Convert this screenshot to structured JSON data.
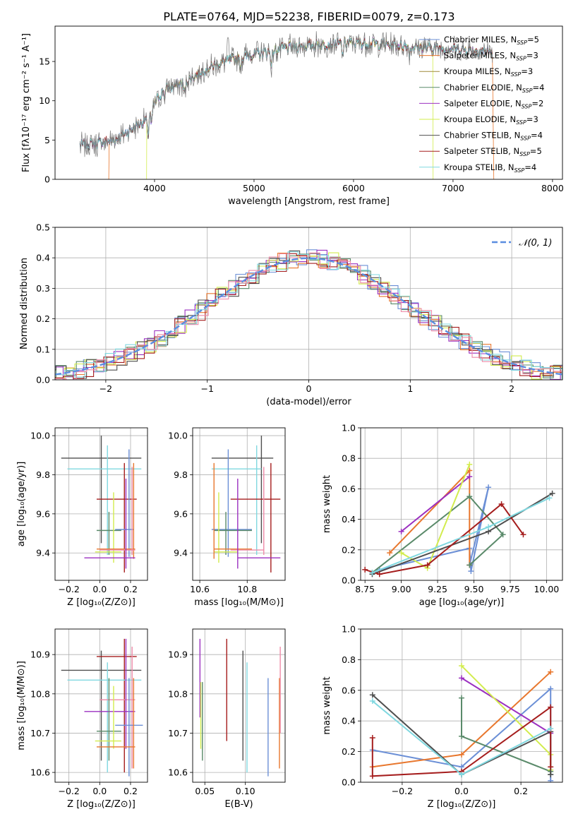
{
  "figure_title": "PLATE=0764, MJD=52238, FIBERID=0079, z=0.173",
  "colors": {
    "Chabrier MILES": "#6b8fd6",
    "Salpeter MILES": "#e8772e",
    "Kroupa MILES": "#a08a3a",
    "Chabrier ELODIE": "#5a8a6a",
    "Salpeter ELODIE": "#9b30c0",
    "Kroupa ELODIE": "#d2ec4e",
    "Chabrier STELIB": "#4f4f4f",
    "Salpeter STELIB": "#a51d1d",
    "Kroupa STELIB": "#80d8e0",
    "extra_pink": "#ee8aa8"
  },
  "chart_data": [
    {
      "id": "spectrum",
      "type": "line",
      "xlabel": "wavelength [Angstrom, rest frame]",
      "ylabel": "Flux [fλ10⁻¹⁷ erg cm⁻² s⁻¹ A⁻¹]",
      "xlim": [
        3000,
        8100
      ],
      "ylim": [
        0,
        19.5
      ],
      "xticks": [
        4000,
        5000,
        6000,
        7000,
        8000
      ],
      "yticks": [
        0,
        5,
        10,
        15
      ],
      "grid": false,
      "legend_position": "top-right",
      "legend": [
        {
          "name": "Chabrier MILES",
          "nssp": "5"
        },
        {
          "name": "Salpeter MILES",
          "nssp": "3"
        },
        {
          "name": "Kroupa MILES",
          "nssp": "3"
        },
        {
          "name": "Chabrier ELODIE",
          "nssp": "4"
        },
        {
          "name": "Salpeter ELODIE",
          "nssp": "2"
        },
        {
          "name": "Kroupa ELODIE",
          "nssp": "3"
        },
        {
          "name": "Chabrier STELIB",
          "nssp": "4"
        },
        {
          "name": "Salpeter STELIB",
          "nssp": "5"
        },
        {
          "name": "Kroupa STELIB",
          "nssp": "4"
        }
      ],
      "continuum": {
        "x": [
          3250,
          3600,
          3900,
          3990,
          4100,
          4300,
          4500,
          4700,
          5000,
          5300,
          5600,
          6000,
          6500,
          7000,
          7400
        ],
        "y": [
          4.3,
          5.0,
          7.5,
          9.5,
          11.5,
          12.3,
          14.0,
          15.0,
          15.9,
          16.7,
          17.1,
          17.4,
          17.0,
          16.6,
          16.2
        ]
      },
      "model_coverage": [
        {
          "model": "Salpeter MILES",
          "xmin": 3540,
          "xmax": 7410
        },
        {
          "model": "Kroupa ELODIE",
          "xmin": 3920,
          "xmax": 6800
        }
      ]
    },
    {
      "id": "residuals",
      "type": "histogram",
      "xlabel": "(data-model)/error",
      "ylabel": "Normed distribution",
      "xlim": [
        -2.5,
        2.5
      ],
      "ylim": [
        0,
        0.5
      ],
      "xticks": [
        -2,
        -1,
        0,
        1,
        2
      ],
      "yticks": [
        0.0,
        0.1,
        0.2,
        0.3,
        0.4,
        0.5
      ],
      "grid": true,
      "legend_position": "top-right",
      "reference_curve": {
        "label": "𝒩(0, 1)",
        "mean": 0,
        "std": 1,
        "style": "dashed"
      },
      "bin_width": 0.1
    },
    {
      "id": "age-vs-Z",
      "type": "errorbar",
      "xlabel": "Z [log₁₀(Z/Z⊙)]",
      "ylabel": "age  [log₁₀(age/yr)]",
      "xlim": [
        -0.29,
        0.31
      ],
      "ylim": [
        9.26,
        10.04
      ],
      "xticks": [
        -0.2,
        0.0,
        0.2
      ],
      "yticks": [
        9.4,
        9.6,
        9.8,
        10.0
      ],
      "grid": true,
      "points": [
        {
          "model": "Chabrier STELIB",
          "x": 0.01,
          "xlo": -0.25,
          "xhi": 0.27,
          "y": 9.885,
          "ylo": 9.45,
          "yhi": 10.0
        },
        {
          "model": "Kroupa STELIB",
          "x": 0.05,
          "xlo": -0.21,
          "xhi": 0.27,
          "y": 9.83,
          "ylo": 9.39,
          "yhi": 9.95
        },
        {
          "model": "Salpeter STELIB",
          "x": 0.16,
          "xlo": -0.02,
          "xhi": 0.24,
          "y": 9.675,
          "ylo": 9.3,
          "yhi": 9.86
        },
        {
          "model": "Chabrier MILES",
          "x": 0.19,
          "xlo": 0.1,
          "xhi": 0.22,
          "y": 9.52,
          "ylo": 9.38,
          "yhi": 9.93
        },
        {
          "model": "Chabrier ELODIE",
          "x": 0.06,
          "xlo": -0.02,
          "xhi": 0.14,
          "y": 9.515,
          "ylo": 9.39,
          "yhi": 9.61
        },
        {
          "model": "Kroupa ELODIE",
          "x": 0.09,
          "xlo": -0.03,
          "xhi": 0.14,
          "y": 9.405,
          "ylo": 9.35,
          "yhi": 9.71
        },
        {
          "model": "Salpeter MILES",
          "x": 0.22,
          "xlo": -0.02,
          "xhi": 0.23,
          "y": 9.42,
          "ylo": 9.37,
          "yhi": 9.86
        },
        {
          "model": "extra_pink",
          "x": 0.21,
          "xlo": 0.0,
          "xhi": 0.23,
          "y": 9.415,
          "ylo": 9.39,
          "yhi": 9.84
        },
        {
          "model": "Salpeter ELODIE",
          "x": 0.17,
          "xlo": -0.1,
          "xhi": 0.23,
          "y": 9.375,
          "ylo": 9.32,
          "yhi": 9.78
        }
      ]
    },
    {
      "id": "age-vs-mass",
      "type": "errorbar",
      "xlabel": "mass [log₁₀(M/M⊙)]",
      "ylabel": "",
      "xlim": [
        10.57,
        10.96
      ],
      "ylim": [
        9.26,
        10.04
      ],
      "xticks": [
        10.6,
        10.8
      ],
      "yticks": [
        9.4,
        9.6,
        9.8,
        10.0
      ],
      "grid": true,
      "points": [
        {
          "model": "Chabrier STELIB",
          "x": 10.86,
          "xlo": 10.65,
          "xhi": 10.91,
          "y": 9.885,
          "ylo": 9.45,
          "yhi": 10.0
        },
        {
          "model": "Kroupa STELIB",
          "x": 10.84,
          "xlo": 10.65,
          "xhi": 10.86,
          "y": 9.83,
          "ylo": 9.39,
          "yhi": 9.95
        },
        {
          "model": "Salpeter STELIB",
          "x": 10.9,
          "xlo": 10.73,
          "xhi": 10.94,
          "y": 9.675,
          "ylo": 9.3,
          "yhi": 9.86
        },
        {
          "model": "Chabrier MILES",
          "x": 10.72,
          "xlo": 10.65,
          "xhi": 10.82,
          "y": 9.52,
          "ylo": 9.38,
          "yhi": 9.93
        },
        {
          "model": "Chabrier ELODIE",
          "x": 10.71,
          "xlo": 10.66,
          "xhi": 10.82,
          "y": 9.515,
          "ylo": 9.39,
          "yhi": 9.61
        },
        {
          "model": "Kroupa ELODIE",
          "x": 10.68,
          "xlo": 10.66,
          "xhi": 10.76,
          "y": 9.405,
          "ylo": 9.35,
          "yhi": 9.71
        },
        {
          "model": "Salpeter MILES",
          "x": 10.66,
          "xlo": 10.66,
          "xhi": 10.82,
          "y": 9.42,
          "ylo": 9.37,
          "yhi": 9.86
        },
        {
          "model": "extra_pink",
          "x": 10.87,
          "xlo": 10.73,
          "xhi": 10.87,
          "y": 9.415,
          "ylo": 9.39,
          "yhi": 9.84
        },
        {
          "model": "Salpeter ELODIE",
          "x": 10.76,
          "xlo": 10.76,
          "xhi": 10.94,
          "y": 9.375,
          "ylo": 9.32,
          "yhi": 9.78
        }
      ]
    },
    {
      "id": "weight-vs-age",
      "type": "line",
      "xlabel": "age  [log₁₀(age/yr)]",
      "ylabel": "mass weight",
      "xlim": [
        8.72,
        10.11
      ],
      "ylim": [
        0,
        1.0
      ],
      "xticks": [
        8.75,
        9.0,
        9.25,
        9.5,
        9.75,
        10.0
      ],
      "yticks": [
        0.0,
        0.2,
        0.4,
        0.6,
        0.8,
        1.0
      ],
      "grid": true,
      "series": [
        {
          "model": "Chabrier MILES",
          "x": [
            8.8,
            8.85,
            9.47,
            9.48,
            9.6,
            9.47
          ],
          "y": [
            0.05,
            0.07,
            0.21,
            0.06,
            0.61,
            0.1
          ]
        },
        {
          "model": "Salpeter MILES",
          "x": [
            8.92,
            9.47,
            9.47
          ],
          "y": [
            0.18,
            0.72,
            0.1
          ]
        },
        {
          "model": "Chabrier ELODIE",
          "x": [
            8.8,
            9.47,
            9.7,
            9.47
          ],
          "y": [
            0.05,
            0.55,
            0.3,
            0.1
          ]
        },
        {
          "model": "Salpeter ELODIE",
          "x": [
            9.0,
            9.47
          ],
          "y": [
            0.32,
            0.68
          ]
        },
        {
          "model": "Kroupa ELODIE",
          "x": [
            9.0,
            9.18,
            9.47
          ],
          "y": [
            0.18,
            0.08,
            0.76
          ]
        },
        {
          "model": "Chabrier STELIB",
          "x": [
            8.8,
            9.6,
            10.04
          ],
          "y": [
            0.04,
            0.32,
            0.57
          ]
        },
        {
          "model": "Salpeter STELIB",
          "x": [
            8.75,
            8.85,
            9.18,
            9.69,
            9.84
          ],
          "y": [
            0.07,
            0.04,
            0.1,
            0.5,
            0.3
          ]
        },
        {
          "model": "Kroupa STELIB",
          "x": [
            8.8,
            9.6,
            10.02
          ],
          "y": [
            0.05,
            0.35,
            0.54
          ]
        }
      ]
    },
    {
      "id": "mass-vs-Z",
      "type": "errorbar",
      "xlabel": "Z [log₁₀(Z/Z⊙)]",
      "ylabel": "mass [log₁₀(M/M⊙)]",
      "xlim": [
        -0.29,
        0.31
      ],
      "ylim": [
        10.575,
        10.965
      ],
      "xticks": [
        -0.2,
        0.0,
        0.2
      ],
      "yticks": [
        10.6,
        10.7,
        10.8,
        10.9
      ],
      "grid": true,
      "points": [
        {
          "model": "Chabrier STELIB",
          "x": 0.01,
          "xlo": -0.25,
          "xhi": 0.27,
          "y": 10.86,
          "ylo": 10.63,
          "yhi": 10.91
        },
        {
          "model": "Salpeter STELIB",
          "x": 0.16,
          "xlo": -0.02,
          "xhi": 0.24,
          "y": 10.895,
          "ylo": 10.6,
          "yhi": 10.94
        },
        {
          "model": "Kroupa STELIB",
          "x": 0.05,
          "xlo": -0.21,
          "xhi": 0.27,
          "y": 10.835,
          "ylo": 10.6,
          "yhi": 10.88
        },
        {
          "model": "extra_pink",
          "x": 0.21,
          "xlo": 0.0,
          "xhi": 0.23,
          "y": 10.785,
          "ylo": 10.61,
          "yhi": 10.92
        },
        {
          "model": "Salpeter ELODIE",
          "x": 0.17,
          "xlo": -0.1,
          "xhi": 0.23,
          "y": 10.755,
          "ylo": 10.66,
          "yhi": 10.94
        },
        {
          "model": "Chabrier MILES",
          "x": 0.19,
          "xlo": 0.1,
          "xhi": 0.28,
          "y": 10.72,
          "ylo": 10.59,
          "yhi": 10.84
        },
        {
          "model": "Chabrier ELODIE",
          "x": 0.06,
          "xlo": -0.02,
          "xhi": 0.14,
          "y": 10.705,
          "ylo": 10.63,
          "yhi": 10.84
        },
        {
          "model": "Kroupa ELODIE",
          "x": 0.09,
          "xlo": -0.03,
          "xhi": 0.14,
          "y": 10.68,
          "ylo": 10.66,
          "yhi": 10.82
        },
        {
          "model": "Salpeter MILES",
          "x": 0.22,
          "xlo": -0.02,
          "xhi": 0.23,
          "y": 10.665,
          "ylo": 10.61,
          "yhi": 10.84
        }
      ]
    },
    {
      "id": "mass-vs-EBV",
      "type": "errorbar",
      "xlabel": "E(B-V)",
      "ylabel": "",
      "xlim": [
        0.035,
        0.149
      ],
      "ylim": [
        10.575,
        10.965
      ],
      "xticks": [
        0.05,
        0.1
      ],
      "yticks": [
        10.6,
        10.7,
        10.8,
        10.9
      ],
      "grid": true,
      "points": [
        {
          "model": "Salpeter ELODIE",
          "x": 0.044,
          "y": 10.83,
          "ylo": 10.74,
          "yhi": 10.94
        },
        {
          "model": "Kroupa ELODIE",
          "x": 0.045,
          "y": 10.76,
          "ylo": 10.66,
          "yhi": 10.83
        },
        {
          "model": "Chabrier ELODIE",
          "x": 0.047,
          "y": 10.73,
          "ylo": 10.63,
          "yhi": 10.83
        },
        {
          "model": "Salpeter STELIB",
          "x": 0.077,
          "y": 10.81,
          "ylo": 10.68,
          "yhi": 10.94
        },
        {
          "model": "Chabrier STELIB",
          "x": 0.097,
          "y": 10.83,
          "ylo": 10.63,
          "yhi": 10.91
        },
        {
          "model": "Kroupa STELIB",
          "x": 0.102,
          "y": 10.74,
          "ylo": 10.6,
          "yhi": 10.88
        },
        {
          "model": "Chabrier MILES",
          "x": 0.128,
          "y": 10.72,
          "ylo": 10.59,
          "yhi": 10.84
        },
        {
          "model": "Salpeter MILES",
          "x": 0.142,
          "y": 10.72,
          "ylo": 10.61,
          "yhi": 10.84
        },
        {
          "model": "extra_pink",
          "x": 0.143,
          "y": 10.81,
          "ylo": 10.7,
          "yhi": 10.92
        }
      ]
    },
    {
      "id": "weight-vs-Z",
      "type": "line",
      "xlabel": "Z [log₁₀(Z/Z⊙)]",
      "ylabel": "mass weight",
      "xlim": [
        -0.34,
        0.34
      ],
      "ylim": [
        0,
        1.0
      ],
      "xticks": [
        -0.2,
        0.0,
        0.2
      ],
      "yticks": [
        0.0,
        0.2,
        0.4,
        0.6,
        0.8,
        1.0
      ],
      "grid": true,
      "series": [
        {
          "model": "Chabrier MILES",
          "x": [
            -0.3,
            0.0,
            0.3,
            0.3
          ],
          "y": [
            0.21,
            0.1,
            0.61,
            0.01
          ]
        },
        {
          "model": "Salpeter MILES",
          "x": [
            -0.3,
            0.0,
            0.3
          ],
          "y": [
            0.1,
            0.18,
            0.72
          ]
        },
        {
          "model": "Chabrier ELODIE",
          "x": [
            0.0,
            0.0,
            0.3,
            0.3
          ],
          "y": [
            0.55,
            0.3,
            0.07,
            0.05
          ]
        },
        {
          "model": "Salpeter ELODIE",
          "x": [
            0.0,
            0.3
          ],
          "y": [
            0.68,
            0.32
          ]
        },
        {
          "model": "Kroupa ELODIE",
          "x": [
            0.0,
            0.3,
            0.3
          ],
          "y": [
            0.76,
            0.18,
            0.08
          ]
        },
        {
          "model": "Chabrier STELIB",
          "x": [
            -0.3,
            0.0,
            0.3,
            0.3
          ],
          "y": [
            0.57,
            0.05,
            0.33,
            0.05
          ]
        },
        {
          "model": "Salpeter STELIB",
          "x": [
            -0.3,
            -0.3,
            0.0,
            0.3,
            0.3
          ],
          "y": [
            0.29,
            0.04,
            0.07,
            0.49,
            0.1
          ]
        },
        {
          "model": "Kroupa STELIB",
          "x": [
            -0.3,
            0.0,
            0.3
          ],
          "y": [
            0.53,
            0.05,
            0.35
          ]
        }
      ]
    }
  ]
}
